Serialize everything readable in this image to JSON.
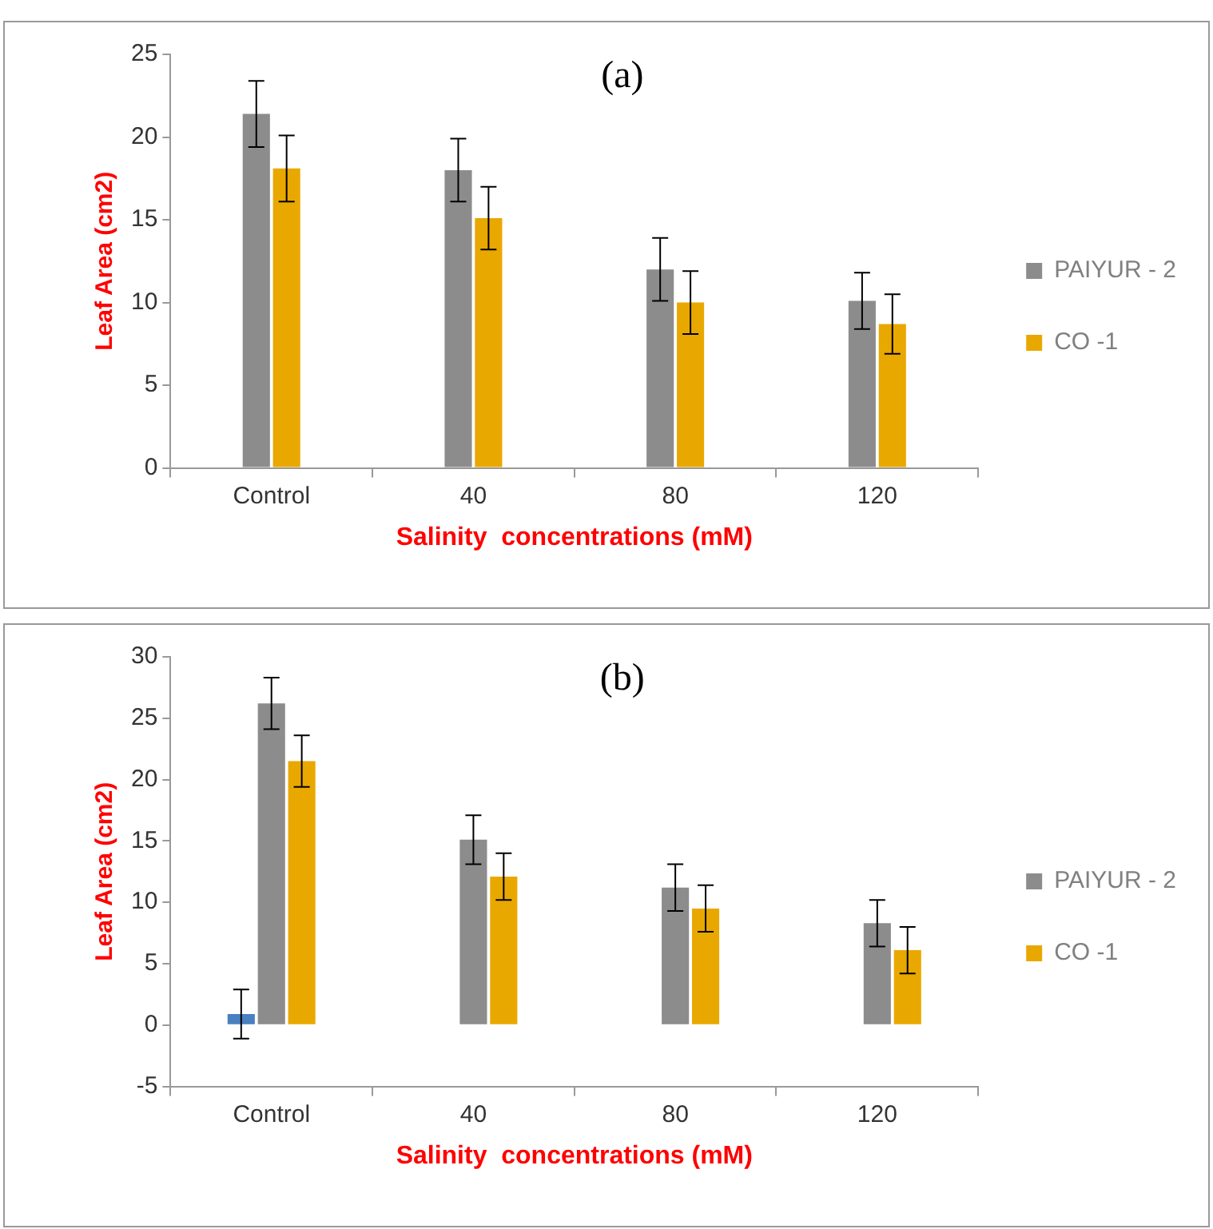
{
  "chart_data": [
    {
      "type": "bar",
      "title": "(a)",
      "xlabel": "Salinity  concentrations (mM)",
      "ylabel": "Leaf Area (cm2)",
      "categories": [
        "Control",
        "40",
        "80",
        "120"
      ],
      "series": [
        {
          "name": "PAIYUR - 2",
          "color": "#8c8c8c",
          "values": [
            21.4,
            18.0,
            12.0,
            10.1
          ],
          "errors": [
            2.0,
            1.9,
            1.9,
            1.7
          ]
        },
        {
          "name": "CO -1",
          "color": "#e9a800",
          "values": [
            18.1,
            15.1,
            10.0,
            8.7
          ],
          "errors": [
            2.0,
            1.9,
            1.9,
            1.8
          ]
        }
      ],
      "ylim": [
        0,
        25
      ],
      "yticks": [
        0,
        5,
        10,
        15,
        20,
        25
      ],
      "grid": false,
      "legend": "right"
    },
    {
      "type": "bar",
      "title": "(b)",
      "xlabel": "Salinity  concentrations (mM)",
      "ylabel": "Leaf Area (cm2)",
      "categories": [
        "Control",
        "40",
        "80",
        "120"
      ],
      "series": [
        {
          "color": "#4a7fc1",
          "values": [
            0.9,
            null,
            null,
            null
          ],
          "errors": [
            2.0,
            null,
            null,
            null
          ]
        },
        {
          "name": "PAIYUR - 2",
          "color": "#8c8c8c",
          "values": [
            26.2,
            15.1,
            11.2,
            8.3
          ],
          "errors": [
            2.1,
            2.0,
            1.9,
            1.9
          ]
        },
        {
          "name": "CO -1",
          "color": "#e9a800",
          "values": [
            21.5,
            12.1,
            9.5,
            6.1
          ],
          "errors": [
            2.1,
            1.9,
            1.9,
            1.9
          ]
        }
      ],
      "ylim": [
        -5,
        30
      ],
      "yticks": [
        -5,
        0,
        5,
        10,
        15,
        20,
        25,
        30
      ],
      "grid": false,
      "legend": "right"
    }
  ]
}
